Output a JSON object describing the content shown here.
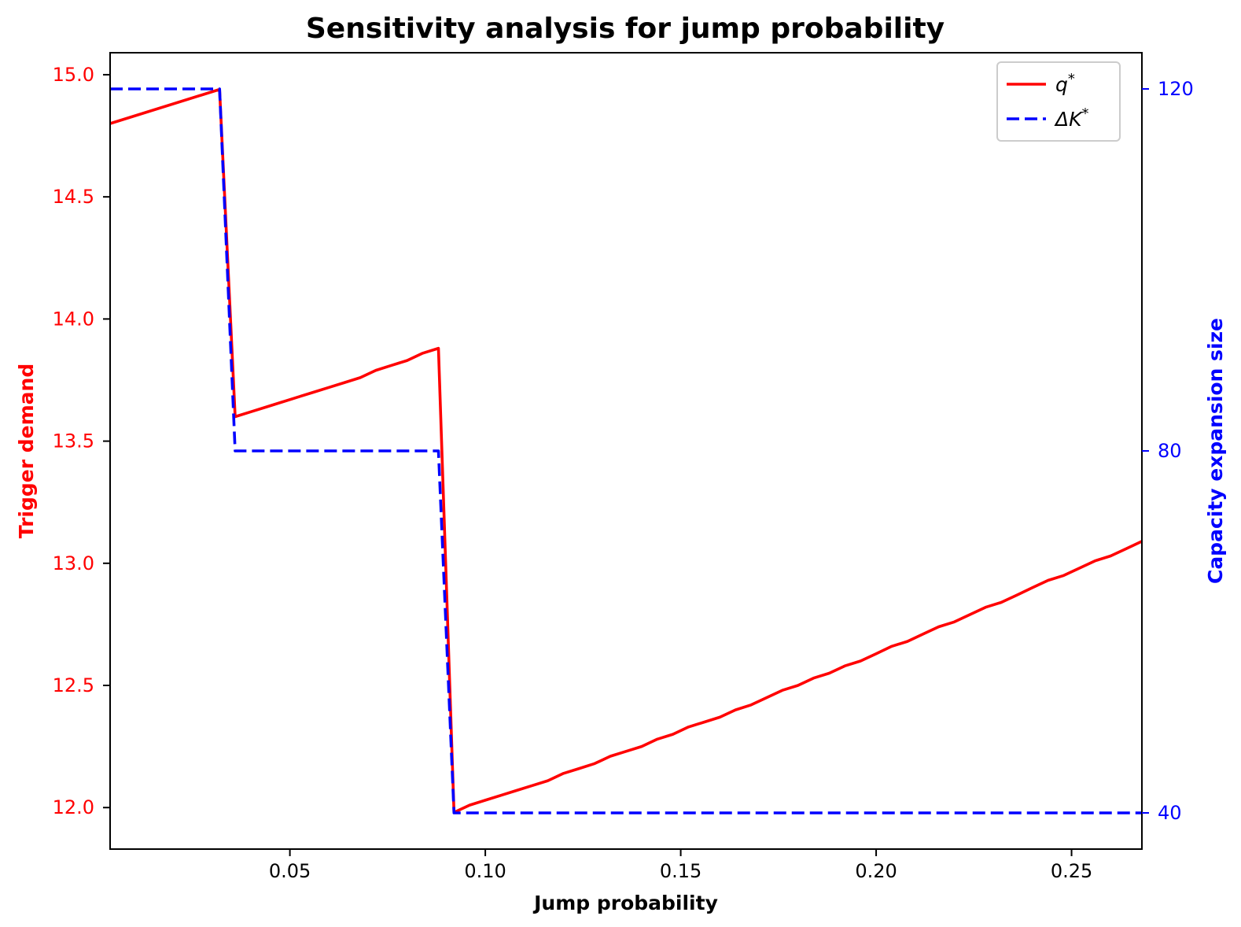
{
  "chart_data": {
    "type": "line",
    "title": "Sensitivity analysis for jump probability",
    "xlabel": "Jump probability",
    "ylabel_left": "Trigger demand",
    "ylabel_right": "Capacity expansion size",
    "xlim": [
      0.004,
      0.268
    ],
    "ylim_left": [
      11.83,
      15.09
    ],
    "ylim_right": [
      36,
      124
    ],
    "xticks": [
      "0.05",
      "0.10",
      "0.15",
      "0.20",
      "0.25"
    ],
    "yticks_left": [
      "12.0",
      "12.5",
      "13.0",
      "13.5",
      "14.0",
      "14.5",
      "15.0"
    ],
    "yticks_right": [
      "40",
      "80",
      "120"
    ],
    "grid": false,
    "legend_position": "top-right",
    "colors": {
      "left_axis": "#ff0000",
      "right_axis": "#0000ff"
    },
    "series": [
      {
        "name": "q*",
        "legend_base": "q",
        "legend_sup": "*",
        "axis": "left",
        "color": "#ff0000",
        "style": "solid",
        "x": [
          0.004,
          0.032,
          0.036,
          0.04,
          0.044,
          0.048,
          0.052,
          0.056,
          0.06,
          0.064,
          0.068,
          0.072,
          0.076,
          0.08,
          0.084,
          0.088,
          0.092,
          0.096,
          0.1,
          0.104,
          0.108,
          0.112,
          0.116,
          0.12,
          0.124,
          0.128,
          0.132,
          0.136,
          0.14,
          0.144,
          0.148,
          0.152,
          0.156,
          0.16,
          0.164,
          0.168,
          0.172,
          0.176,
          0.18,
          0.184,
          0.188,
          0.192,
          0.196,
          0.2,
          0.204,
          0.208,
          0.212,
          0.216,
          0.22,
          0.224,
          0.228,
          0.232,
          0.236,
          0.24,
          0.244,
          0.248,
          0.252,
          0.256,
          0.26,
          0.264,
          0.268
        ],
        "y": [
          14.8,
          14.94,
          13.6,
          13.62,
          13.64,
          13.66,
          13.68,
          13.7,
          13.72,
          13.74,
          13.76,
          13.79,
          13.81,
          13.83,
          13.86,
          13.88,
          11.98,
          12.01,
          12.03,
          12.05,
          12.07,
          12.09,
          12.11,
          12.14,
          12.16,
          12.18,
          12.21,
          12.23,
          12.25,
          12.28,
          12.3,
          12.33,
          12.35,
          12.37,
          12.4,
          12.42,
          12.45,
          12.48,
          12.5,
          12.53,
          12.55,
          12.58,
          12.6,
          12.63,
          12.66,
          12.68,
          12.71,
          12.74,
          12.76,
          12.79,
          12.82,
          12.84,
          12.87,
          12.9,
          12.93,
          12.95,
          12.98,
          13.01,
          13.03,
          13.06,
          13.09
        ]
      },
      {
        "name": "ΔK*",
        "legend_base": "ΔK",
        "legend_sup": "*",
        "axis": "right",
        "color": "#0000ff",
        "style": "dashed",
        "x": [
          0.004,
          0.032,
          0.036,
          0.088,
          0.092,
          0.268
        ],
        "y": [
          120,
          120,
          80,
          80,
          40,
          40
        ]
      }
    ]
  }
}
